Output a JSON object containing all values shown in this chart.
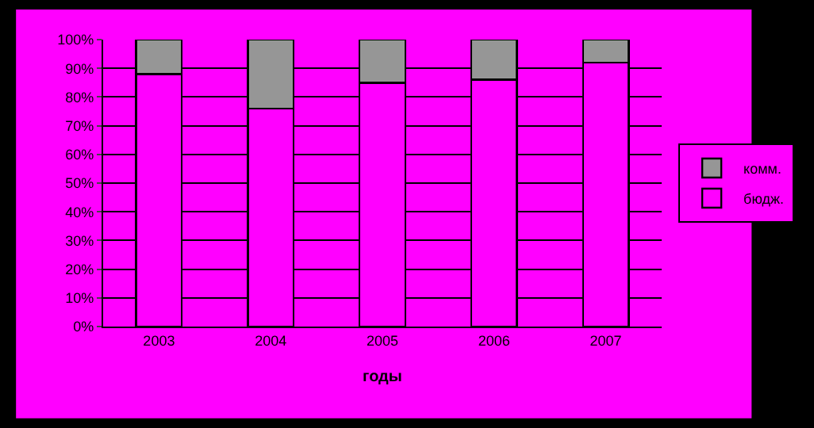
{
  "chart_data": {
    "type": "bar",
    "stacked": true,
    "xlabel": "годы",
    "categories": [
      "2003",
      "2004",
      "2005",
      "2006",
      "2007"
    ],
    "series": [
      {
        "name": "бюдж.",
        "color": "#ff00ff",
        "values": [
          88,
          76,
          85,
          86,
          92
        ]
      },
      {
        "name": "комм.",
        "color": "#969696",
        "values": [
          12,
          24,
          15,
          14,
          8
        ]
      }
    ],
    "ylim": [
      0,
      100
    ],
    "yticks": [
      {
        "value": 0,
        "label": "0%"
      },
      {
        "value": 10,
        "label": "10%"
      },
      {
        "value": 20,
        "label": "20%"
      },
      {
        "value": 30,
        "label": "30%"
      },
      {
        "value": 40,
        "label": "40%"
      },
      {
        "value": 50,
        "label": "50%"
      },
      {
        "value": 60,
        "label": "60%"
      },
      {
        "value": 70,
        "label": "70%"
      },
      {
        "value": 80,
        "label": "80%"
      },
      {
        "value": 90,
        "label": "90%"
      },
      {
        "value": 100,
        "label": "100%"
      }
    ],
    "grid": "y",
    "legend": "right"
  }
}
